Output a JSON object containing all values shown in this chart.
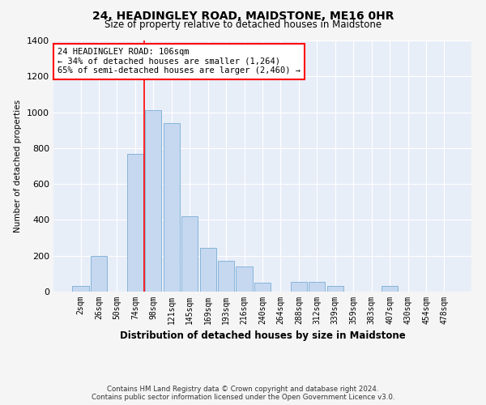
{
  "title": "24, HEADINGLEY ROAD, MAIDSTONE, ME16 0HR",
  "subtitle": "Size of property relative to detached houses in Maidstone",
  "xlabel": "Distribution of detached houses by size in Maidstone",
  "ylabel": "Number of detached properties",
  "bar_color": "#c5d8f0",
  "bar_edge_color": "#7aadd4",
  "background_color": "#e8eef8",
  "grid_color": "#ffffff",
  "categories": [
    "2sqm",
    "26sqm",
    "50sqm",
    "74sqm",
    "98sqm",
    "121sqm",
    "145sqm",
    "169sqm",
    "193sqm",
    "216sqm",
    "240sqm",
    "264sqm",
    "288sqm",
    "312sqm",
    "339sqm",
    "359sqm",
    "383sqm",
    "407sqm",
    "430sqm",
    "454sqm",
    "478sqm"
  ],
  "values": [
    30,
    200,
    0,
    770,
    1010,
    940,
    420,
    245,
    170,
    140,
    50,
    0,
    55,
    55,
    30,
    0,
    0,
    30,
    0,
    0,
    0
  ],
  "ylim": [
    0,
    1400
  ],
  "yticks": [
    0,
    200,
    400,
    600,
    800,
    1000,
    1200,
    1400
  ],
  "property_bin_index": 4,
  "red_line_x": 3.5,
  "annotation_text": "24 HEADINGLEY ROAD: 106sqm\n← 34% of detached houses are smaller (1,264)\n65% of semi-detached houses are larger (2,460) →",
  "footer_line1": "Contains HM Land Registry data © Crown copyright and database right 2024.",
  "footer_line2": "Contains public sector information licensed under the Open Government Licence v3.0.",
  "fig_width": 6.0,
  "fig_height": 5.0,
  "fig_bg": "#f5f5f5"
}
